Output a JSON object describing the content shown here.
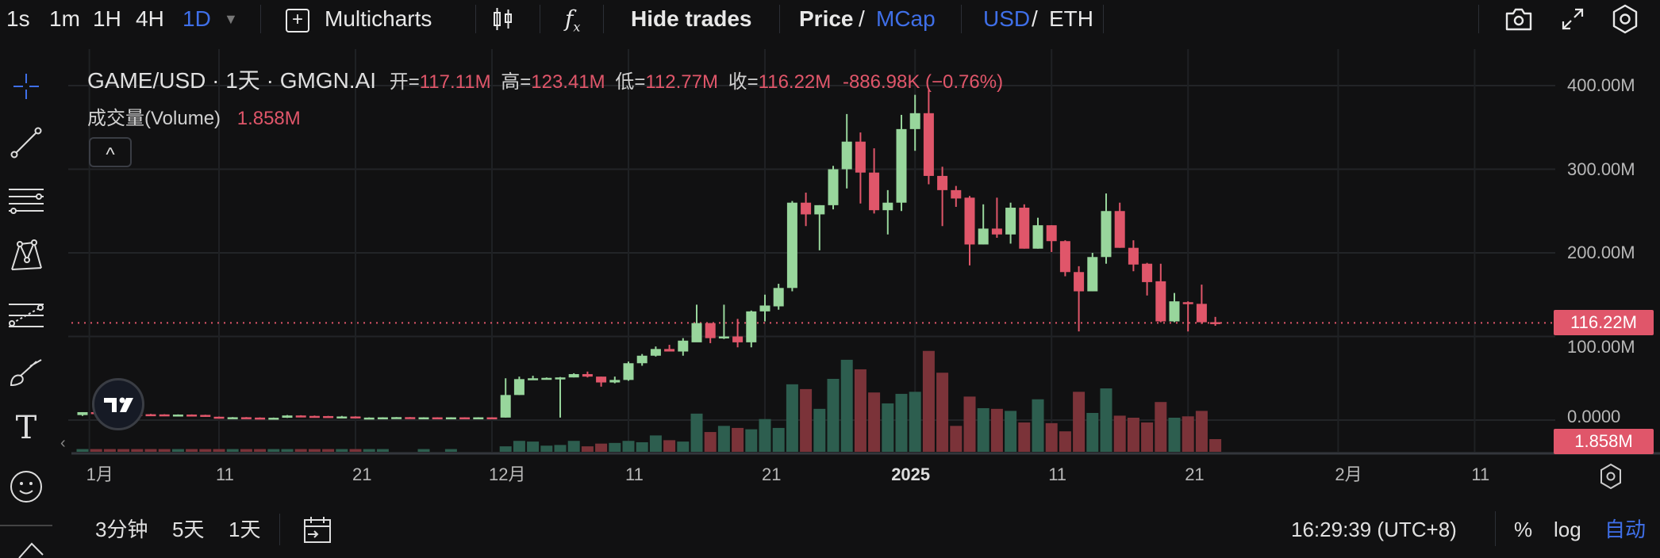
{
  "toolbar": {
    "intervals": [
      "1s",
      "1m",
      "1H",
      "4H",
      "1D"
    ],
    "active_interval": "1D",
    "multicharts_label": "Multicharts",
    "hide_trades_label": "Hide trades",
    "price_label": "Price",
    "slash": "/",
    "mcap_label": "MCap",
    "usd_label": "USD",
    "eth_label": "ETH",
    "accent": "#3f6fe8"
  },
  "legend": {
    "symbol": "GAME/USD · 1天 · GMGN.AI",
    "open_label": "开=",
    "open": "117.11M",
    "high_label": "高=",
    "high": "123.41M",
    "low_label": "低=",
    "low": "112.77M",
    "close_label": "收=",
    "close": "116.22M",
    "change": "-886.98K (−0.76%)",
    "volume_label": "成交量(Volume)",
    "volume": "1.858M",
    "collapse_icon": "^"
  },
  "price_axis": {
    "labels": [
      "400.00M",
      "300.00M",
      "200.00M",
      "100.00M",
      "0.0000"
    ],
    "levels": [
      400,
      300,
      200,
      100,
      0
    ],
    "current_price_tag": "116.22M",
    "current_price": 116.22,
    "volume_tag": "1.858M"
  },
  "time_axis": {
    "ticks": [
      {
        "label": "1月",
        "day": 0.5
      },
      {
        "label": "11",
        "day": 10
      },
      {
        "label": "21",
        "day": 20
      },
      {
        "label": "12月",
        "day": 30
      },
      {
        "label": "11",
        "day": 40
      },
      {
        "label": "21",
        "day": 50
      },
      {
        "label": "2025",
        "day": 61,
        "bold": true
      },
      {
        "label": "11",
        "day": 71
      },
      {
        "label": "21",
        "day": 81
      },
      {
        "label": "2月",
        "day": 92
      },
      {
        "label": "11",
        "day": 102
      }
    ]
  },
  "bottom_bar": {
    "ranges": [
      "3分钟",
      "5天",
      "1天"
    ],
    "clock": "16:29:39 (UTC+8)",
    "percent_label": "%",
    "log_label": "log",
    "auto_label": "自动"
  },
  "chart_data": {
    "type": "candlestick",
    "title": "GAME/USD · 1天 · GMGN.AI",
    "unit": "M",
    "ylim": [
      0,
      400
    ],
    "colors": {
      "up": "#98d69c",
      "down": "#e0566a",
      "vol_up": "#2d5e4f",
      "vol_down": "#7b3339"
    },
    "ohlc": [
      [
        6,
        9.5,
        5,
        9.5
      ],
      [
        9.5,
        10,
        7.5,
        8
      ],
      [
        8,
        8.5,
        7,
        7.5
      ],
      [
        7.5,
        8,
        7,
        7.2
      ],
      [
        7.2,
        7.5,
        6.8,
        7
      ],
      [
        7,
        7.4,
        6.5,
        6.8
      ],
      [
        6.8,
        7,
        6.2,
        6.5
      ],
      [
        6.5,
        6.8,
        6.2,
        6.6
      ],
      [
        6.6,
        6.8,
        6,
        6.2
      ],
      [
        6.2,
        6.4,
        3.8,
        4
      ],
      [
        4,
        4.2,
        2.8,
        3
      ],
      [
        3,
        3.6,
        2.8,
        3.4
      ],
      [
        3.4,
        3.6,
        2.8,
        3
      ],
      [
        3,
        3.2,
        2.6,
        2.8
      ],
      [
        2.5,
        3,
        2.4,
        2.8
      ],
      [
        2.8,
        6,
        2.6,
        5.5
      ],
      [
        5.5,
        5.8,
        4.8,
        5
      ],
      [
        5,
        5.4,
        4.6,
        4.8
      ],
      [
        4.8,
        5,
        3.8,
        4
      ],
      [
        4,
        5,
        3.8,
        4.3
      ],
      [
        4.3,
        4.5,
        3.6,
        3.8
      ],
      [
        2.8,
        3.2,
        2.6,
        3
      ],
      [
        3,
        3.4,
        2.9,
        3.3
      ],
      [
        3.3,
        3.6,
        3.2,
        3.5
      ],
      [
        3.5,
        3.6,
        3.2,
        3.3
      ],
      [
        3.2,
        3.4,
        3.1,
        3.3
      ],
      [
        3.3,
        3.4,
        3.1,
        3.2
      ],
      [
        3.2,
        3.4,
        3.1,
        3.3
      ],
      [
        3.3,
        3.4,
        3.1,
        3.2
      ],
      [
        3.2,
        3.4,
        3.1,
        3.3
      ],
      [
        3.3,
        3.4,
        3.1,
        3.2
      ],
      [
        3,
        50,
        3,
        30
      ],
      [
        30,
        52,
        30,
        49
      ],
      [
        49,
        53,
        48,
        50
      ],
      [
        50,
        51,
        50,
        50.5
      ],
      [
        50.5,
        51.5,
        3,
        51
      ],
      [
        51,
        56,
        51,
        55
      ],
      [
        55,
        58,
        51,
        52
      ],
      [
        52,
        52,
        40,
        45
      ],
      [
        45,
        52,
        44,
        48
      ],
      [
        48,
        70,
        47,
        68
      ],
      [
        68,
        79,
        65,
        77
      ],
      [
        77,
        88,
        76,
        85
      ],
      [
        85,
        90,
        82,
        82
      ],
      [
        82,
        98,
        77,
        95
      ],
      [
        93,
        138,
        94,
        116
      ],
      [
        116,
        116,
        92,
        98
      ],
      [
        99,
        138,
        97,
        100
      ],
      [
        100,
        121,
        87,
        93
      ],
      [
        93,
        131,
        87,
        130
      ],
      [
        130,
        150,
        118,
        137
      ],
      [
        136,
        163,
        132,
        158
      ],
      [
        158,
        262,
        154,
        260
      ],
      [
        260,
        272,
        232,
        246
      ],
      [
        246,
        257,
        203,
        257
      ],
      [
        257,
        304,
        252,
        300
      ],
      [
        300,
        366,
        277,
        333
      ],
      [
        333,
        344,
        259,
        296
      ],
      [
        296,
        325,
        247,
        251
      ],
      [
        251,
        275,
        222,
        260
      ],
      [
        260,
        365,
        250,
        348
      ],
      [
        348,
        389,
        322,
        367
      ],
      [
        367,
        395,
        282,
        292
      ],
      [
        292,
        303,
        232,
        275
      ],
      [
        275,
        280,
        255,
        265
      ],
      [
        266,
        268,
        185,
        210
      ],
      [
        210,
        258,
        210,
        229
      ],
      [
        229,
        266,
        218,
        222
      ],
      [
        222,
        260,
        211,
        254
      ],
      [
        254,
        258,
        205,
        205
      ],
      [
        205,
        242,
        205,
        233
      ],
      [
        233,
        233,
        201,
        214
      ],
      [
        214,
        215,
        172,
        177
      ],
      [
        177,
        184,
        106,
        154
      ],
      [
        154,
        200,
        154,
        195
      ],
      [
        195,
        271,
        187,
        250
      ],
      [
        250,
        260,
        206,
        206
      ],
      [
        206,
        215,
        178,
        186
      ],
      [
        187,
        188,
        149,
        165
      ],
      [
        166,
        187,
        117,
        118
      ],
      [
        118,
        152,
        117,
        142
      ],
      [
        141,
        142,
        106,
        139
      ],
      [
        139,
        162,
        115,
        117
      ],
      [
        117.11,
        123.41,
        112.77,
        116.22
      ]
    ],
    "volume": [
      0.4,
      0.4,
      0.4,
      0.4,
      0.4,
      0.4,
      0.4,
      0.4,
      0.4,
      0.4,
      0.4,
      0.4,
      0.4,
      0.4,
      0.4,
      0.4,
      0.4,
      0.4,
      0.4,
      0.4,
      0.4,
      0.4,
      0.4,
      0,
      0,
      0.4,
      0,
      0.4,
      0,
      0,
      0,
      0.8,
      1.6,
      1.5,
      0.9,
      1.0,
      1.6,
      0.8,
      1.2,
      1.3,
      1.6,
      1.4,
      2.4,
      1.7,
      1.5,
      5.6,
      2.9,
      3.8,
      3.5,
      3.3,
      4.8,
      3.5,
      9.9,
      9.2,
      6.3,
      10.7,
      13.5,
      12.1,
      8.7,
      7.1,
      8.5,
      8.8,
      14.8,
      11.6,
      3.8,
      8.1,
      6.4,
      6.3,
      6.0,
      4.3,
      7.7,
      4.2,
      3.0,
      8.8,
      5.7,
      9.3,
      5.3,
      5.0,
      4.3,
      7.3,
      5.0,
      5.2,
      6.0,
      1.858
    ]
  }
}
